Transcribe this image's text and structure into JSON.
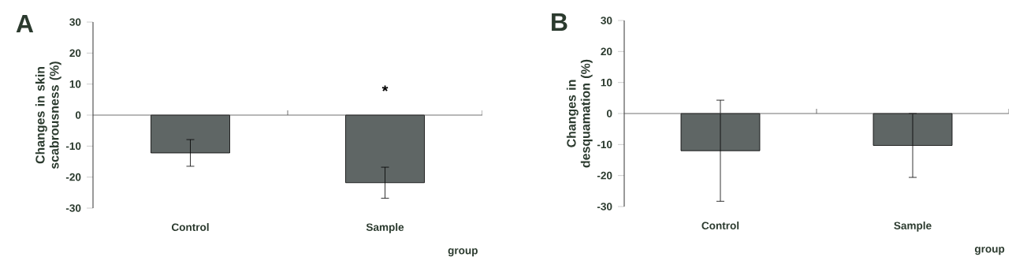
{
  "chart_data": [
    {
      "type": "bar",
      "title": "A",
      "xlabel": "group",
      "ylabel": "Changes in skin scabrousness (%)",
      "categories": [
        "Control",
        "Sample"
      ],
      "values": [
        -12.2,
        -21.8
      ],
      "errors": [
        4.3,
        5
      ],
      "color": "#5f6665",
      "ylim": [
        -30,
        30
      ],
      "yticks": [
        -30,
        -20,
        -10,
        0,
        10,
        20,
        30
      ],
      "annotations": [
        "*"
      ]
    },
    {
      "type": "bar",
      "title": "B",
      "xlabel": "group",
      "ylabel": "Changes in desquamation (%)",
      "categories": [
        "Control",
        "Sample"
      ],
      "values": [
        -12,
        -10.3
      ],
      "errors": [
        16.3,
        10.3
      ],
      "color": "#5f6665",
      "ylim": [
        -30,
        30
      ],
      "yticks": [
        -30,
        -20,
        -10,
        0,
        10,
        20,
        30
      ]
    }
  ]
}
